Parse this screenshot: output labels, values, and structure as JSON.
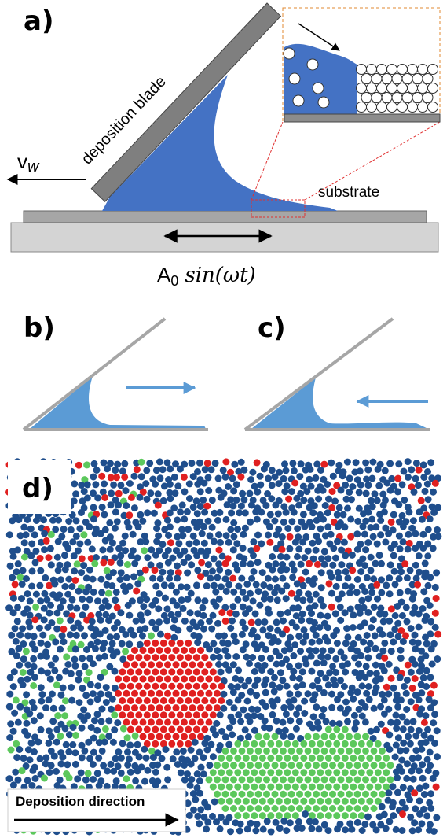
{
  "panel_a": {
    "label": "a)",
    "blade": "deposition blade",
    "velocity": {
      "symbol": "v",
      "subscript": "w"
    },
    "substrate": "substrate",
    "oscillation": {
      "amplitude": "A",
      "subscript": "0",
      "function": "sin(ωt)"
    }
  },
  "panel_b": {
    "label": "b)"
  },
  "panel_c": {
    "label": "c)"
  },
  "panel_d": {
    "label": "d)",
    "caption": "Deposition direction"
  }
}
